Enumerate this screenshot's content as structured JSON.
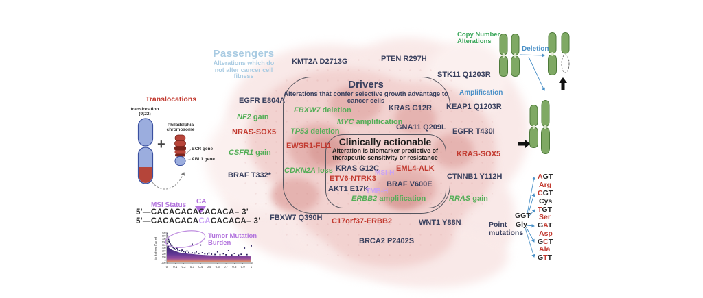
{
  "colors": {
    "navy": "#39405e",
    "red": "#c23a30",
    "green": "#53ae57",
    "purple": "#b273dd",
    "purple_light": "#c9a2f5",
    "blue": "#4a90c7",
    "light_blue": "#a9cbe2",
    "green_title": "#3aa65a"
  },
  "passengers": {
    "title": "Passengers",
    "subtitle": "Alterations which do not alter cancer cell fitness"
  },
  "drivers": {
    "title": "Drivers",
    "subtitle": "Alterations that confer selective growth advantage to cancer cells"
  },
  "actionable": {
    "title": "Clinically actionable",
    "subtitle": "Alteration is biomarker predictive of therapeutic sensitivity or resistance"
  },
  "labels": {
    "kmt2a": "KMT2A D2713G",
    "pten": "PTEN R297H",
    "stk11": "STK11 Q1203R",
    "egfr_e804a": "EGFR E804A",
    "nras_sox5": "NRAS-SOX5",
    "braf_t332": "BRAF T332*",
    "keap1": "KEAP1 Q1203R",
    "egfr_t430i": "EGFR T430I",
    "kras_sox5": "KRAS-SOX5",
    "ctnnb1": "CTNNB1 Y112H",
    "fbxw7_q390h": "FBXW7 Q390H",
    "c17orf37": "C17orf37-ERBB2",
    "wnt1": "WNT1 Y88N",
    "brca2": "BRCA2 P2402S",
    "kras_g12r": "KRAS G12R",
    "gna11": "GNA11 Q209L",
    "ewsr1": "EWSR1-FLI1",
    "kras_g12c": "KRAS G12C",
    "eml4": "EML4-ALK",
    "etv6": "ETV6-NTRK3",
    "braf_v600e": "BRAF V600E",
    "akt1": "AKT1 E17K",
    "msi_h": "MSI-H",
    "tmb_h": "TMB-H"
  },
  "genes": {
    "nf2": {
      "gene": "NF2",
      "rest": " gain"
    },
    "csfr1": {
      "gene": "CSFR1",
      "rest": " gain"
    },
    "fbxw7_del": {
      "gene": "FBXW7",
      "rest": " deletion"
    },
    "myc": {
      "gene": "MYC",
      "rest": " amplification"
    },
    "tp53": {
      "gene": "TP53",
      "rest": " deletion"
    },
    "cdkn2a": {
      "gene": "CDKN2A",
      "rest": " loss"
    },
    "erbb2": {
      "gene": "ERBB2",
      "rest": " amplification"
    },
    "rras": {
      "gene": "RRAS",
      "rest": " gain"
    }
  },
  "translocations": {
    "title": "Translocations",
    "chrom_line1": "translocation",
    "chrom_line2": "(9;22)",
    "plus": "+",
    "ph_line1": "Philadelphia",
    "ph_line2": "chromosome",
    "bcr": "BCR gene",
    "abl": "ABL1 gene"
  },
  "msi": {
    "title": "MSI Status",
    "ca": "CA",
    "seq1": "5'—CACACACACACACA– 3'",
    "seq2_pre": "5'—CACACACA",
    "seq2_ins": "CA",
    "seq2_post": "CACACA– 3'",
    "tmb_line1": "Tumor Mutation",
    "tmb_line2": "Burden"
  },
  "copy_number": {
    "title_line1": "Copy Number",
    "title_line2": "Alterations",
    "deletion": "Deletion",
    "amplification": "Amplification"
  },
  "point_mutations": {
    "title_line1": "Point",
    "title_line2": "mutations",
    "source_codon": "GGT",
    "source_aa": "Gly",
    "codons": [
      {
        "pre": "",
        "mut": "A",
        "post": "GT",
        "aa": "Arg",
        "aa_red": true
      },
      {
        "pre": "",
        "mut": "C",
        "post": "GT",
        "aa": "Cys",
        "aa_red": false
      },
      {
        "pre": "",
        "mut": "T",
        "post": "GT",
        "aa": "Ser",
        "aa_red": true
      },
      {
        "pre": "G",
        "mut": "A",
        "post": "T",
        "aa": "Asp",
        "aa_red": true
      },
      {
        "pre": "G",
        "mut": "C",
        "post": "T",
        "aa": "Ala",
        "aa_red": true
      },
      {
        "pre": "G",
        "mut": "T",
        "post": "T",
        "aa": "",
        "aa_red": false
      }
    ]
  },
  "chart_data": {
    "type": "scatter",
    "title": "Tumor Mutation Burden",
    "xlabel": "",
    "ylabel": "Mutation Count",
    "xlim": [
      0,
      1
    ],
    "ylim": [
      -100,
      900
    ],
    "grid": false,
    "xticks": [
      "0",
      "0.1",
      "0.2",
      "0.3",
      "0.4",
      "0.5",
      "0.6",
      "0.7",
      "0.8",
      "0.9",
      "1"
    ],
    "yticks": [
      "900",
      "800",
      "700",
      "600",
      "500",
      "400",
      "300",
      "200",
      "100",
      "0",
      "-100"
    ],
    "points": [
      [
        0.005,
        870
      ],
      [
        0.01,
        800
      ],
      [
        0.015,
        730
      ],
      [
        0.02,
        680
      ],
      [
        0.025,
        620
      ],
      [
        0.01,
        560
      ],
      [
        0.03,
        590
      ],
      [
        0.04,
        540
      ],
      [
        0.05,
        500
      ],
      [
        0.06,
        470
      ],
      [
        0.02,
        450
      ],
      [
        0.07,
        430
      ],
      [
        0.08,
        410
      ],
      [
        0.09,
        380
      ],
      [
        0.1,
        360
      ],
      [
        0.12,
        390
      ],
      [
        0.13,
        340
      ],
      [
        0.15,
        310
      ],
      [
        0.17,
        290
      ],
      [
        0.18,
        330
      ],
      [
        0.2,
        280
      ],
      [
        0.22,
        260
      ],
      [
        0.24,
        300
      ],
      [
        0.26,
        250
      ],
      [
        0.3,
        530
      ],
      [
        0.3,
        240
      ],
      [
        0.33,
        230
      ],
      [
        0.35,
        270
      ],
      [
        0.38,
        220
      ],
      [
        0.4,
        500
      ],
      [
        0.42,
        240
      ],
      [
        0.45,
        210
      ],
      [
        0.48,
        200
      ],
      [
        0.5,
        230
      ],
      [
        0.53,
        195
      ],
      [
        0.57,
        185
      ],
      [
        0.6,
        270
      ],
      [
        0.63,
        180
      ],
      [
        0.67,
        210
      ],
      [
        0.7,
        175
      ],
      [
        0.73,
        310
      ],
      [
        0.77,
        170
      ],
      [
        0.8,
        220
      ],
      [
        0.85,
        165
      ],
      [
        0.88,
        190
      ],
      [
        0.92,
        400
      ],
      [
        0.95,
        180
      ],
      [
        1,
        470
      ]
    ],
    "band_profile": [
      [
        0,
        470
      ],
      [
        0.03,
        400
      ],
      [
        0.06,
        340
      ],
      [
        0.1,
        300
      ],
      [
        0.15,
        250
      ],
      [
        0.2,
        230
      ],
      [
        0.25,
        210
      ],
      [
        0.3,
        200
      ],
      [
        0.35,
        185
      ],
      [
        0.4,
        175
      ],
      [
        0.5,
        160
      ],
      [
        0.6,
        150
      ],
      [
        0.7,
        140
      ],
      [
        0.8,
        135
      ],
      [
        0.9,
        130
      ],
      [
        1,
        125
      ]
    ],
    "annotation": "Tumor Mutation Burden"
  }
}
